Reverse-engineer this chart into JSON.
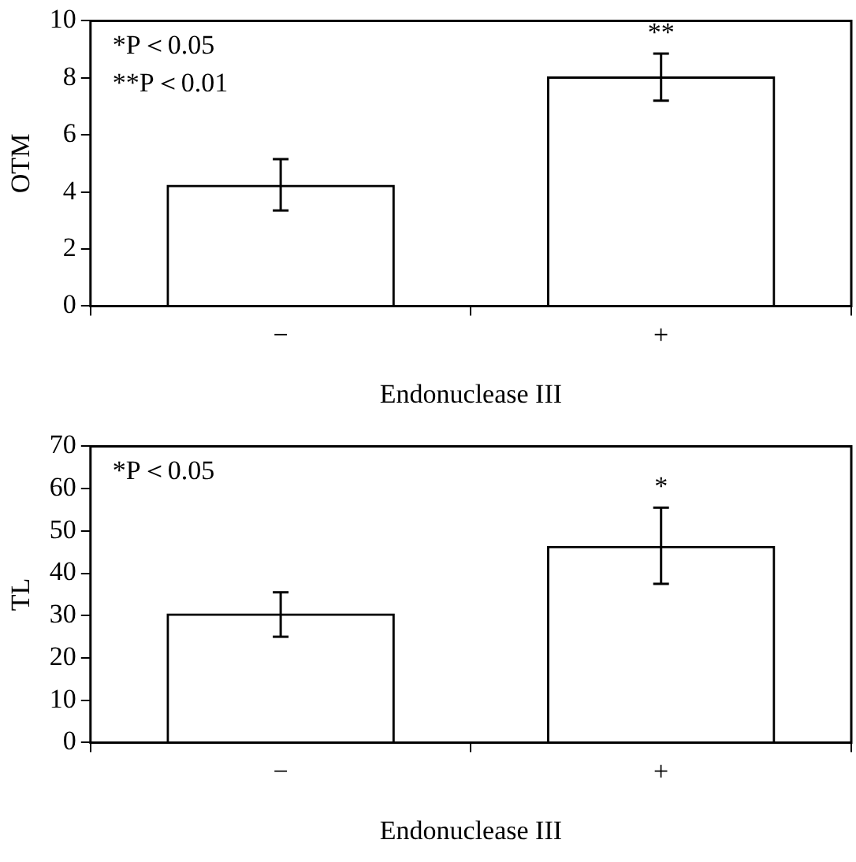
{
  "chart_data": [
    {
      "type": "bar",
      "categories": [
        "−",
        "+"
      ],
      "values": [
        4.25,
        8.05
      ],
      "errors": [
        0.9,
        [
          7.2,
          8.85
        ]
      ],
      "colors": [
        "#000000",
        "#000000"
      ],
      "ylabel": "OTM",
      "xlabel": "Endonuclease III",
      "ylim": [
        0,
        10
      ],
      "yticks": [
        0,
        2,
        4,
        6,
        8,
        10
      ],
      "grid": false,
      "legend": false,
      "annotations": [
        "*P＜0.05",
        "**P＜0.01",
        "**"
      ]
    },
    {
      "type": "bar",
      "categories": [
        "−",
        "+"
      ],
      "values": [
        30.5,
        46.5
      ],
      "errors": [
        [
          25,
          35.5
        ],
        [
          37.5,
          55.5
        ]
      ],
      "colors": [
        "#000000",
        "#000000"
      ],
      "ylabel": "TL",
      "xlabel": "Endonuclease III",
      "ylim": [
        0,
        70
      ],
      "yticks": [
        0,
        10,
        20,
        30,
        40,
        50,
        60,
        70
      ],
      "grid": false,
      "legend": false,
      "annotations": [
        "*P＜0.05",
        "*"
      ]
    }
  ]
}
